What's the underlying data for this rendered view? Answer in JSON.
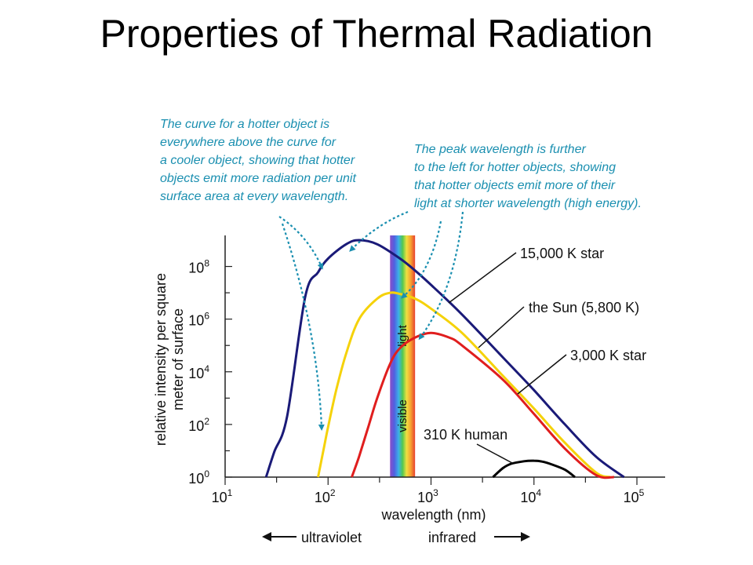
{
  "slide": {
    "title": "Properties of Thermal Radiation"
  },
  "colors": {
    "star15000": "#1a1a78",
    "sun": "#f5d20a",
    "star3000": "#e01e1e",
    "human": "#000000",
    "annotation": "#1a8fb0",
    "axis": "#222222"
  },
  "chart_data": {
    "type": "line",
    "xscale": "log",
    "yscale": "log",
    "xlim": [
      10,
      100000
    ],
    "ylim": [
      1,
      1000000000
    ],
    "xlabel": "wavelength (nm)",
    "ylabel_lines": [
      "relative intensity per square",
      "meter of surface"
    ],
    "x_ticks": [
      {
        "value": 10,
        "base": "10",
        "exp": "1"
      },
      {
        "value": 100,
        "base": "10",
        "exp": "2"
      },
      {
        "value": 1000,
        "base": "10",
        "exp": "3"
      },
      {
        "value": 10000,
        "base": "10",
        "exp": "4"
      },
      {
        "value": 100000,
        "base": "10",
        "exp": "5"
      }
    ],
    "y_ticks": [
      {
        "value": 1,
        "base": "10",
        "exp": "0"
      },
      {
        "value": 100,
        "base": "10",
        "exp": "2"
      },
      {
        "value": 10000,
        "base": "10",
        "exp": "4"
      },
      {
        "value": 1000000,
        "base": "10",
        "exp": "6"
      },
      {
        "value": 100000000,
        "base": "10",
        "exp": "8"
      }
    ],
    "series": [
      {
        "key": "star15000",
        "name": "15,000 K star",
        "x": [
          25,
          30,
          40,
          60,
          80,
          100,
          150,
          200,
          300,
          500,
          700,
          1000,
          2000,
          5000,
          10000,
          20000,
          40000,
          75000
        ],
        "y": [
          1,
          9,
          200,
          7000000,
          60000000,
          200000000,
          700000000,
          1000000000,
          700000000,
          200000000,
          70000000,
          20000000,
          1500000,
          35000,
          2000,
          100,
          6,
          1
        ]
      },
      {
        "key": "sun",
        "name": "the Sun (5,800 K)",
        "x": [
          80,
          90,
          100,
          120,
          150,
          200,
          300,
          400,
          500,
          700,
          1000,
          2000,
          5000,
          10000,
          20000,
          40000,
          55000
        ],
        "y": [
          1,
          10,
          80,
          2000,
          50000,
          1000000,
          6000000,
          10000000,
          9000000,
          6000000,
          2500000,
          300000,
          7000,
          400,
          20,
          1.5,
          1
        ]
      },
      {
        "key": "star3000",
        "name": "3,000 K star",
        "x": [
          170,
          200,
          250,
          300,
          400,
          500,
          700,
          1000,
          1500,
          2000,
          5000,
          10000,
          20000,
          40000,
          60000
        ],
        "y": [
          1,
          6,
          100,
          1000,
          20000,
          80000,
          200000,
          300000,
          200000,
          100000,
          5000,
          250,
          12,
          1.2,
          1
        ]
      },
      {
        "key": "human",
        "name": "310 K human",
        "x": [
          4000,
          5000,
          6000,
          8000,
          10000,
          12000,
          15000,
          20000,
          25000
        ],
        "y": [
          1,
          2.2,
          3.2,
          4,
          4.2,
          3.9,
          3,
          1.9,
          1
        ]
      }
    ],
    "band": {
      "x_start": 400,
      "x_end": 700,
      "labels": [
        "light",
        "visible"
      ]
    },
    "bottom_labels": {
      "left": "ultraviolet",
      "right": "infrared"
    },
    "annotations": [
      {
        "lines": [
          "The curve for a hotter object is",
          "everywhere above the curve for",
          "a cooler object, showing that hotter",
          "objects emit more radiation per unit",
          "surface area at every wavelength."
        ]
      },
      {
        "lines": [
          "The peak wavelength is further",
          "to the left for hotter objects, showing",
          "that hotter objects emit more of their",
          "light at shorter wavelength (high energy)."
        ]
      }
    ]
  }
}
